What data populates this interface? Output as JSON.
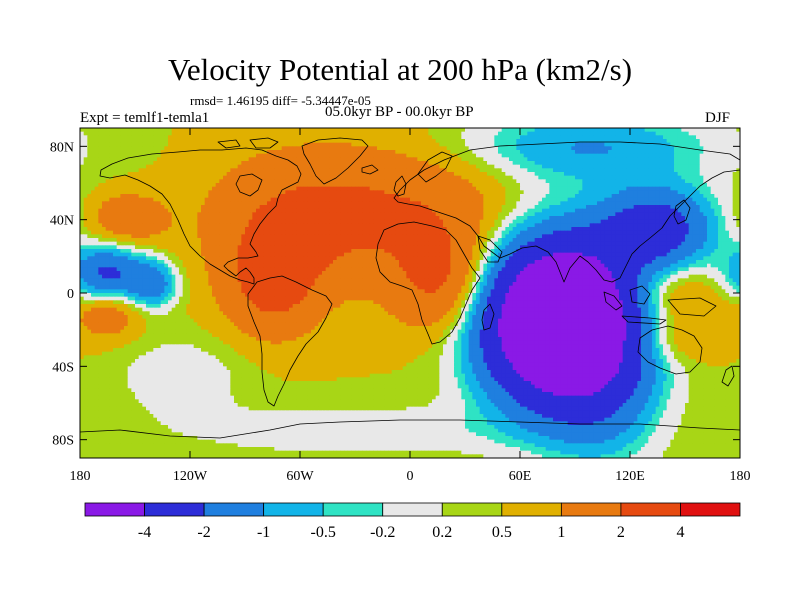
{
  "title": "Velocity Potential at 200 hPa (km2/s)",
  "stats_text": "rmsd= 1.46195 diff= -5.34447e-05",
  "left_label": "Expt = temlf1-temla1",
  "center_label": "05.0kyr BP - 00.0kyr BP",
  "right_label": "DJF",
  "chart_data": {
    "type": "heatmap",
    "projection": "cylindrical-equidistant",
    "x_range": [
      -180,
      180
    ],
    "y_range": [
      -90,
      90
    ],
    "x_ticks": [
      {
        "value": -180,
        "label": "180"
      },
      {
        "value": -120,
        "label": "120W"
      },
      {
        "value": -60,
        "label": "60W"
      },
      {
        "value": 0,
        "label": "0"
      },
      {
        "value": 60,
        "label": "60E"
      },
      {
        "value": 120,
        "label": "120E"
      },
      {
        "value": 180,
        "label": "180"
      }
    ],
    "y_ticks": [
      {
        "value": 80,
        "label": "80N"
      },
      {
        "value": 40,
        "label": "40N"
      },
      {
        "value": 0,
        "label": "0"
      },
      {
        "value": -40,
        "label": "40S"
      },
      {
        "value": -80,
        "label": "80S"
      }
    ],
    "levels": [
      -4,
      -2,
      -1,
      -0.5,
      -0.2,
      0.2,
      0.5,
      1,
      2,
      4
    ],
    "level_labels": [
      "-4",
      "-2",
      "-1",
      "-0.5",
      "-0.2",
      "0.2",
      "0.5",
      "1",
      "2",
      "4"
    ],
    "colors": [
      "#8a19e6",
      "#2d2dd8",
      "#1f7fdf",
      "#12b4e8",
      "#2fe3c4",
      "#e8e8e8",
      "#a8d616",
      "#e0b000",
      "#e87a10",
      "#e64a10",
      "#e01010"
    ],
    "background": 0.5,
    "features": [
      {
        "lon": 80,
        "lat": -15,
        "amp": -9.0,
        "slon": 28,
        "slat": 30
      },
      {
        "lon": 135,
        "lat": 35,
        "amp": -3.2,
        "slon": 22,
        "slat": 16
      },
      {
        "lon": 105,
        "lat": -40,
        "amp": -1.8,
        "slon": 22,
        "slat": 35
      },
      {
        "lon": 95,
        "lat": 80,
        "amp": -1.5,
        "slon": 50,
        "slat": 14
      },
      {
        "lon": -165,
        "lat": 10,
        "amp": -2.8,
        "slon": 14,
        "slat": 11
      },
      {
        "lon": -140,
        "lat": 5,
        "amp": -1.9,
        "slon": 9,
        "slat": 9
      },
      {
        "lon": -75,
        "lat": 5,
        "amp": 1.8,
        "slon": 18,
        "slat": 20
      },
      {
        "lon": -60,
        "lat": 40,
        "amp": 1.5,
        "slon": 35,
        "slat": 25
      },
      {
        "lon": 20,
        "lat": 5,
        "amp": 1.8,
        "slon": 20,
        "slat": 20
      },
      {
        "lon": 5,
        "lat": 45,
        "amp": 1.2,
        "slon": 40,
        "slat": 25
      },
      {
        "lon": -155,
        "lat": 40,
        "amp": 1.2,
        "slon": 15,
        "slat": 10
      },
      {
        "lon": -165,
        "lat": -10,
        "amp": 1.3,
        "slon": 12,
        "slat": 10
      },
      {
        "lon": 140,
        "lat": 0,
        "amp": 1.1,
        "slon": 18,
        "slat": 12
      },
      {
        "lon": 140,
        "lat": -25,
        "amp": 0.9,
        "slon": 18,
        "slat": 10
      },
      {
        "lon": -30,
        "lat": -75,
        "amp": -0.6,
        "slon": 70,
        "slat": 10
      },
      {
        "lon": -125,
        "lat": -45,
        "amp": -0.6,
        "slon": 25,
        "slat": 15
      }
    ]
  },
  "colors": {
    "coastline": "#000000",
    "frame": "#000000",
    "text": "#000000"
  }
}
